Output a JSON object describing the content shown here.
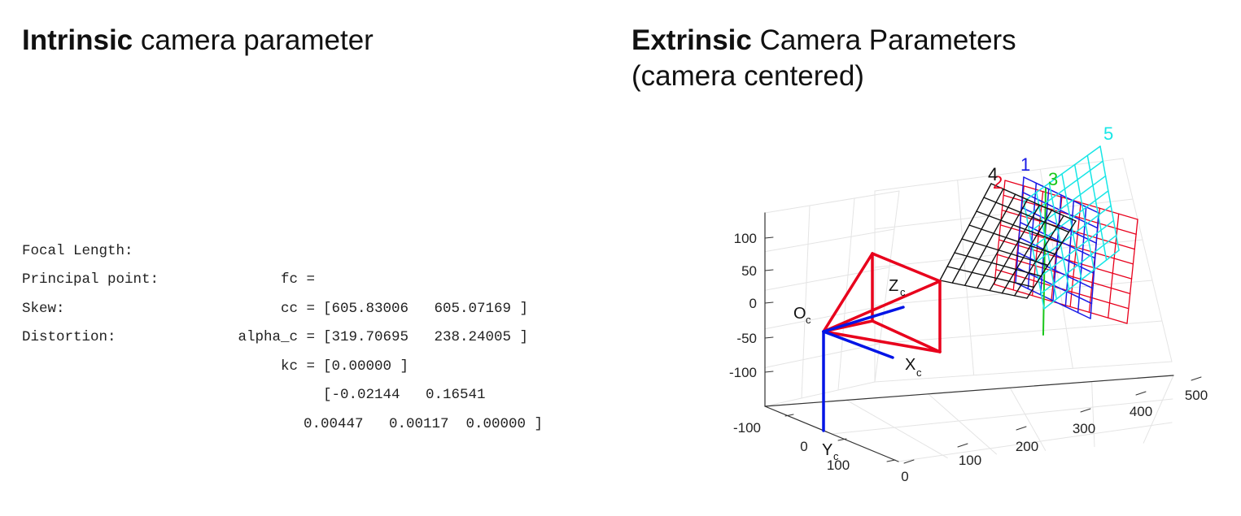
{
  "left_panel": {
    "title_bold": "Intrinsic",
    "title_rest": " camera parameter",
    "parameters": [
      {
        "label": "Focal Length:",
        "name": "fc =",
        "value": "[605.83006   605.07169 ]"
      },
      {
        "label": "Principal point:",
        "name": "cc =",
        "value": "[319.70695   238.24005 ]"
      },
      {
        "label": "Skew:",
        "name": "alpha_c =",
        "value": "[0.00000 ]"
      },
      {
        "label": "Distortion:",
        "name": "kc =",
        "value": "[-0.02144   0.16541"
      },
      {
        "label": "",
        "name": "",
        "value": "0.00447   0.00117  0.00000 ]"
      }
    ]
  },
  "right_panel": {
    "title_bold": "Extrinsic",
    "title_rest": " Camera Parameters",
    "title_line2": "(camera centered)"
  },
  "chart_data": {
    "type": "scatter",
    "projection": "3d",
    "grid": true,
    "z_ticks": [
      "100",
      "50",
      "0",
      "-50",
      "-100"
    ],
    "x_ticks": [
      "0",
      "100",
      "200",
      "300",
      "400",
      "500"
    ],
    "y_ticks": [
      "-100",
      "0",
      "100"
    ],
    "camera_labels": {
      "origin": "O",
      "x_axis": "X",
      "y_axis": "Y",
      "z_axis": "Z",
      "subscript": "c"
    },
    "plane_labels": [
      "1",
      "2",
      "3",
      "4",
      "5"
    ],
    "colors": {
      "camera_frustum": "#e8001c",
      "camera_axes": "#0014e6",
      "plane_1": "#1a1ae6",
      "plane_2": "#e8001c",
      "plane_3": "#19c619",
      "plane_4": "#111111",
      "plane_5": "#17e6e6",
      "grid": "#e4e4e4",
      "box": "#333333"
    }
  }
}
